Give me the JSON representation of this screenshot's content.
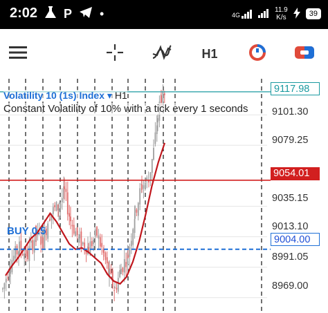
{
  "status_bar": {
    "time": "2:02",
    "icon_p": "P",
    "dot": "•",
    "net_speed_value": "11.9",
    "net_speed_unit": "K/s",
    "signal": "4G",
    "battery": "39"
  },
  "toolbar": {
    "timeframe": "H1",
    "icons": [
      "menu-icon",
      "crosshair-icon",
      "indicators-icon",
      "timeframe-button",
      "chart-type-icon",
      "trade-icon"
    ]
  },
  "chart": {
    "symbol": "Volatility 10 (1s) Index",
    "symbol_caret": "▾",
    "timeframe": "H1",
    "description": "Constant Volatility of 10% with a tick every 1 seconds",
    "price_scale": [
      "9101.30",
      "9079.25",
      "9035.15",
      "9013.10",
      "8991.05",
      "8969.00"
    ],
    "bid_price": "9117.98",
    "level_price": "9054.01",
    "buy_label": "BUY 0.5",
    "buy_price": "9004.00",
    "colors": {
      "bull": "#9e9e9e",
      "bear": "#e06b6b",
      "ma": "#c0161c",
      "bid": "#1a9aa0",
      "level": "#d21f1f",
      "buy": "#1e6fd6"
    }
  },
  "chart_data": {
    "type": "candlestick",
    "price_axis_ticks": [
      9101.3,
      9079.25,
      9035.15,
      9013.1,
      8991.05,
      8969.0
    ],
    "bid": 9117.98,
    "level": 9054.01,
    "buy_order": 9004.0,
    "ma_approx": [
      8985,
      8992,
      8998,
      9005,
      9012,
      9016,
      9023,
      9030,
      9024,
      9016,
      9008,
      9004,
      9005,
      9002,
      8998,
      8994,
      8986,
      8981,
      8979,
      8984,
      8995,
      9010,
      9029,
      9050,
      9067,
      9081
    ]
  }
}
